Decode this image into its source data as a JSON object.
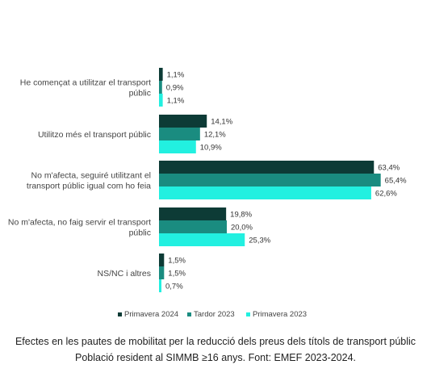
{
  "chart_data": {
    "type": "bar",
    "orientation": "horizontal",
    "categories": [
      [
        "He començat a utilitzar el  transport",
        "públic"
      ],
      [
        "Utilitzo més el transport públic"
      ],
      [
        "No m'afecta, seguiré utilitzant el",
        "transport públic igual com ho feia"
      ],
      [
        "No m'afecta, no faig servir el transport",
        "públic"
      ],
      [
        "NS/NC i altres"
      ]
    ],
    "series": [
      {
        "name": "Primavera 2024",
        "color": "#0d3b36",
        "values": [
          1.1,
          14.1,
          63.4,
          19.8,
          1.5
        ],
        "labels": [
          "1,1%",
          "14,1%",
          "63,4%",
          "19,8%",
          "1,5%"
        ]
      },
      {
        "name": "Tardor 2023",
        "color": "#1a8c80",
        "values": [
          0.9,
          12.1,
          65.4,
          20.0,
          1.5
        ],
        "labels": [
          "0,9%",
          "12,1%",
          "65,4%",
          "20,0%",
          "1,5%"
        ]
      },
      {
        "name": "Primavera 2023",
        "color": "#22f0e0",
        "values": [
          1.1,
          10.9,
          62.6,
          25.3,
          0.7
        ],
        "labels": [
          "1,1%",
          "10,9%",
          "62,6%",
          "25,3%",
          "0,7%"
        ]
      }
    ],
    "legend_position": "bottom",
    "grid": false
  },
  "caption": {
    "line1": "Efectes en les pautes de mobilitat per la reducció dels preus dels títols de transport públic",
    "line2": "Població resident al SIMMB ≥16 anys. Font: EMEF 2023-2024."
  }
}
